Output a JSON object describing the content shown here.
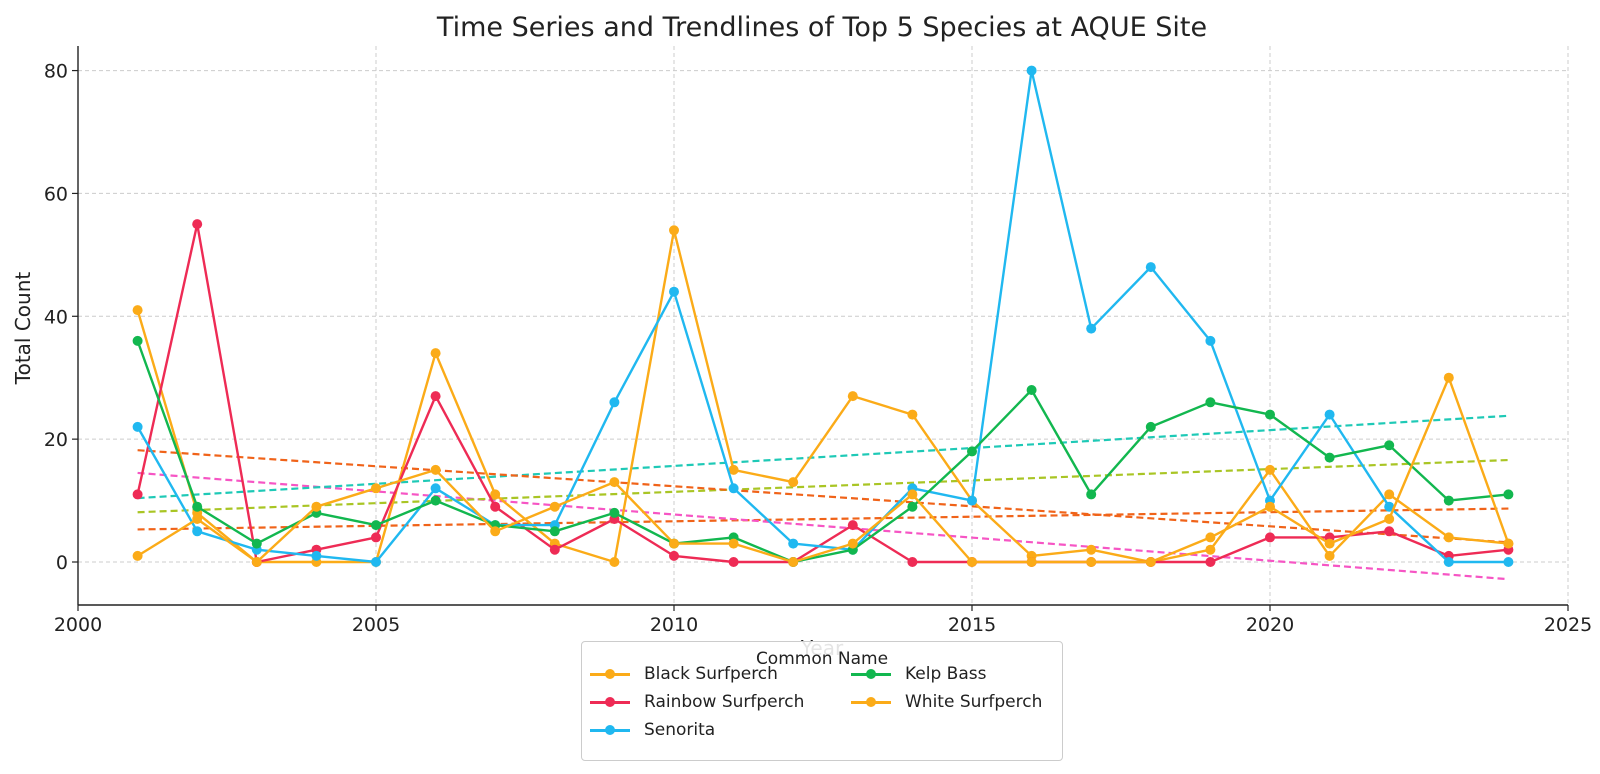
{
  "chart_data": {
    "type": "line",
    "title": "Time Series and Trendlines of Top 5 Species at AQUE Site",
    "xlabel": "Year",
    "ylabel": "Total Count",
    "xlim": [
      2000,
      2025
    ],
    "ylim": [
      -7,
      84
    ],
    "x_ticks": [
      "2000",
      "2005",
      "2010",
      "2015",
      "2020",
      "2025"
    ],
    "y_ticks": [
      "0",
      "20",
      "40",
      "60",
      "80"
    ],
    "grid": true,
    "legend": {
      "title": "Common Name",
      "placement": "bottom-center",
      "columns": 2
    },
    "x": [
      2001,
      2002,
      2003,
      2004,
      2005,
      2006,
      2007,
      2008,
      2009,
      2010,
      2011,
      2012,
      2013,
      2014,
      2015,
      2016,
      2017,
      2018,
      2019,
      2020,
      2021,
      2022,
      2023,
      2024
    ],
    "series": [
      {
        "name": "Black Surfperch",
        "color": "#fbab18",
        "values": [
          41,
          8,
          0,
          0,
          0,
          34,
          11,
          3,
          0,
          54,
          15,
          13,
          27,
          24,
          10,
          1,
          2,
          0,
          2,
          15,
          1,
          11,
          4,
          3
        ],
        "trend": [
          5.3,
          8.7
        ]
      },
      {
        "name": "Rainbow Surfperch",
        "color": "#ee2b55",
        "values": [
          11,
          55,
          0,
          2,
          4,
          27,
          9,
          2,
          7,
          1,
          0,
          0,
          6,
          0,
          0,
          0,
          0,
          0,
          0,
          4,
          4,
          5,
          1,
          2
        ],
        "trend": [
          14.5,
          -2.8
        ]
      },
      {
        "name": "Senorita",
        "color": "#20b8f0",
        "values": [
          22,
          5,
          2,
          1,
          0,
          12,
          6,
          6,
          26,
          44,
          12,
          3,
          2,
          12,
          10,
          80,
          38,
          48,
          36,
          10,
          24,
          9,
          0,
          0
        ],
        "trend": [
          10.4,
          23.8
        ]
      },
      {
        "name": "Kelp Bass",
        "color": "#12b74f",
        "values": [
          36,
          9,
          3,
          8,
          6,
          10,
          6,
          5,
          8,
          3,
          4,
          0,
          2,
          9,
          18,
          28,
          11,
          22,
          26,
          24,
          17,
          19,
          10,
          11
        ],
        "trend": [
          8.1,
          16.6
        ]
      },
      {
        "name": "White Surfperch",
        "color": "#fbab18",
        "values": [
          1,
          7,
          0,
          9,
          12,
          15,
          5,
          9,
          13,
          3,
          3,
          0,
          3,
          11,
          0,
          0,
          0,
          0,
          4,
          9,
          3,
          7,
          30,
          3
        ],
        "trend": [
          18.2,
          3.2
        ]
      }
    ],
    "trend_colors": [
      "#f06319",
      "#f655c4",
      "#1ec9b6",
      "#a9c524",
      "#f06319"
    ]
  }
}
